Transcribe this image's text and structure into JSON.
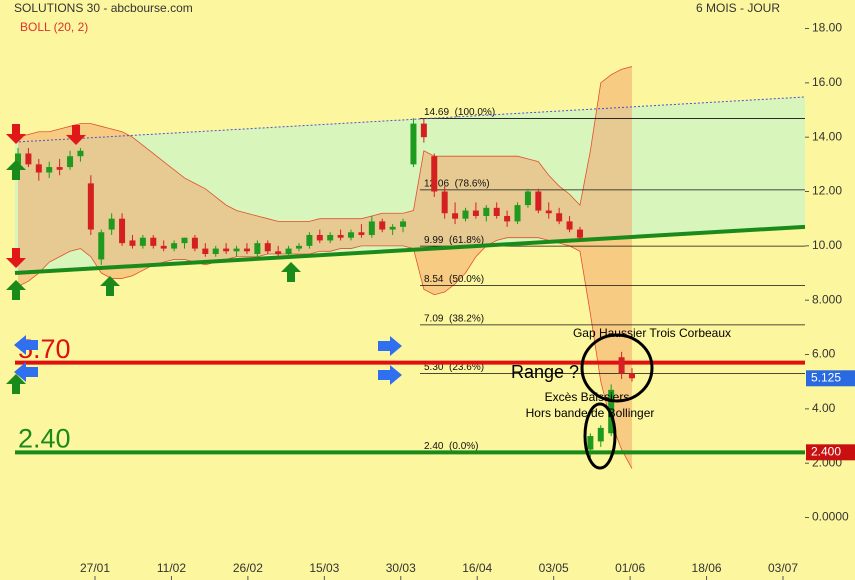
{
  "chart_data": {
    "type": "candlestick",
    "title": "SOLUTIONS 30 - abcbourse.com",
    "period": "6 MOIS - JOUR",
    "ylim": [
      -2.3,
      19.05
    ],
    "yticks": [
      {
        "value": 18,
        "label": "18.00"
      },
      {
        "value": 16,
        "label": "16.00"
      },
      {
        "value": 14,
        "label": "14.00"
      },
      {
        "value": 12,
        "label": "12.00"
      },
      {
        "value": 10,
        "label": "10.00"
      },
      {
        "value": 8,
        "label": "8.000"
      },
      {
        "value": 6,
        "label": "6.00"
      },
      {
        "value": 4,
        "label": "4.00"
      },
      {
        "value": 2,
        "label": "2.000"
      },
      {
        "value": 0,
        "label": "0.0000"
      }
    ],
    "date_labels": [
      "27/01",
      "11/02",
      "26/02",
      "15/03",
      "30/03",
      "16/04",
      "03/05",
      "01/06",
      "18/06",
      "03/07"
    ],
    "up_color": "#1f9a1f",
    "down_color": "#d42020",
    "candles": [
      [
        13.0,
        13.6,
        12.6,
        13.4
      ],
      [
        13.4,
        13.6,
        12.9,
        13.0
      ],
      [
        13.0,
        13.2,
        12.4,
        12.7
      ],
      [
        12.7,
        13.1,
        12.5,
        12.9
      ],
      [
        12.9,
        13.2,
        12.6,
        12.8
      ],
      [
        12.9,
        13.5,
        12.8,
        13.3
      ],
      [
        13.3,
        13.6,
        13.1,
        13.5
      ],
      [
        12.3,
        12.6,
        10.4,
        10.6
      ],
      [
        9.5,
        10.6,
        9.3,
        10.5
      ],
      [
        10.6,
        11.2,
        10.4,
        11.0
      ],
      [
        11.0,
        11.2,
        10.0,
        10.1
      ],
      [
        10.2,
        10.4,
        9.9,
        10.0
      ],
      [
        10.0,
        10.4,
        9.9,
        10.3
      ],
      [
        10.3,
        10.4,
        9.9,
        10.0
      ],
      [
        10.0,
        10.2,
        9.8,
        9.9
      ],
      [
        9.9,
        10.2,
        9.8,
        10.1
      ],
      [
        10.1,
        10.3,
        9.9,
        10.3
      ],
      [
        10.3,
        10.4,
        9.8,
        9.9
      ],
      [
        9.9,
        10.1,
        9.6,
        9.7
      ],
      [
        9.7,
        10.0,
        9.6,
        9.9
      ],
      [
        9.9,
        10.1,
        9.7,
        9.8
      ],
      [
        9.8,
        10.0,
        9.6,
        9.9
      ],
      [
        9.9,
        10.1,
        9.7,
        9.8
      ],
      [
        9.7,
        10.2,
        9.6,
        10.1
      ],
      [
        10.1,
        10.2,
        9.7,
        9.8
      ],
      [
        9.8,
        10.0,
        9.6,
        9.7
      ],
      [
        9.7,
        10.0,
        9.6,
        9.9
      ],
      [
        9.9,
        10.1,
        9.8,
        10.0
      ],
      [
        10.0,
        10.5,
        9.9,
        10.4
      ],
      [
        10.4,
        10.6,
        10.1,
        10.2
      ],
      [
        10.2,
        10.5,
        10.1,
        10.4
      ],
      [
        10.4,
        10.6,
        10.2,
        10.3
      ],
      [
        10.3,
        10.6,
        10.2,
        10.5
      ],
      [
        10.5,
        10.8,
        10.3,
        10.4
      ],
      [
        10.4,
        11.1,
        10.3,
        10.9
      ],
      [
        10.9,
        11.0,
        10.5,
        10.6
      ],
      [
        10.6,
        10.8,
        10.4,
        10.7
      ],
      [
        10.7,
        11.0,
        10.5,
        10.9
      ],
      [
        13.0,
        14.7,
        12.9,
        14.5
      ],
      [
        14.5,
        14.7,
        13.8,
        14.0
      ],
      [
        13.3,
        13.4,
        11.8,
        12.0
      ],
      [
        12.0,
        12.2,
        11.0,
        11.2
      ],
      [
        11.2,
        11.6,
        10.8,
        11.0
      ],
      [
        11.0,
        11.4,
        10.9,
        11.3
      ],
      [
        11.3,
        11.6,
        11.0,
        11.1
      ],
      [
        11.1,
        11.5,
        10.9,
        11.4
      ],
      [
        11.4,
        11.6,
        11.0,
        11.1
      ],
      [
        11.1,
        11.3,
        10.7,
        10.9
      ],
      [
        10.9,
        11.6,
        10.8,
        11.5
      ],
      [
        11.5,
        12.1,
        11.4,
        12.0
      ],
      [
        12.0,
        12.1,
        11.2,
        11.3
      ],
      [
        11.3,
        11.6,
        11.0,
        11.2
      ],
      [
        11.2,
        11.4,
        10.8,
        10.9
      ],
      [
        10.9,
        11.1,
        10.5,
        10.6
      ],
      [
        10.6,
        10.7,
        10.2,
        10.3
      ],
      [
        2.5,
        3.1,
        2.2,
        3.0
      ],
      [
        2.8,
        3.4,
        2.6,
        3.3
      ],
      [
        3.1,
        4.9,
        3.0,
        4.7
      ],
      [
        5.9,
        6.1,
        5.1,
        5.3
      ],
      [
        5.3,
        5.5,
        5.0,
        5.125
      ]
    ],
    "bollinger": {
      "name": "BOLL (20, 2)",
      "color": "#e05030",
      "upper": [
        14.0,
        14.1,
        14.2,
        14.2,
        14.3,
        14.4,
        14.5,
        14.5,
        14.4,
        14.3,
        14.2,
        14.0,
        13.7,
        13.4,
        13.1,
        12.8,
        12.5,
        12.3,
        12.1,
        11.8,
        11.5,
        11.3,
        11.2,
        11.1,
        11.0,
        10.9,
        10.9,
        10.9,
        10.9,
        11.0,
        11.0,
        11.0,
        11.0,
        11.0,
        11.1,
        11.2,
        11.2,
        11.2,
        11.3,
        13.5,
        13.3,
        13.3,
        13.3,
        13.3,
        13.3,
        13.3,
        13.3,
        13.3,
        13.3,
        13.2,
        13.1,
        12.6,
        12.2,
        11.9,
        11.5,
        13.5,
        16.0,
        16.3,
        16.5,
        16.6
      ],
      "lower": [
        8.5,
        8.7,
        9.0,
        9.4,
        9.6,
        9.8,
        9.9,
        9.6,
        9.0,
        8.8,
        8.8,
        8.9,
        9.1,
        9.3,
        9.4,
        9.5,
        9.5,
        9.4,
        9.3,
        9.4,
        9.5,
        9.6,
        9.6,
        9.6,
        9.7,
        9.7,
        9.7,
        9.7,
        9.7,
        9.8,
        9.8,
        9.9,
        9.9,
        10.0,
        10.0,
        10.0,
        10.0,
        10.0,
        9.9,
        8.4,
        8.2,
        8.3,
        8.6,
        9.0,
        9.6,
        10.0,
        10.2,
        10.3,
        10.3,
        10.3,
        10.3,
        10.2,
        10.1,
        10.0,
        9.8,
        7.5,
        5.0,
        3.5,
        2.5,
        1.8
      ]
    },
    "trendlines": [
      {
        "style": "dotted",
        "color": "#5050c8",
        "values": [
          13.82,
          15.48
        ]
      },
      {
        "style": "solid",
        "color": "#1a8a1a",
        "values": [
          9.0,
          10.7
        ]
      }
    ],
    "fib_levels": [
      {
        "value": 14.69,
        "label": "14.69  (100.0%)"
      },
      {
        "value": 12.06,
        "label": "12.06  (78.6%)"
      },
      {
        "value": 9.99,
        "label": "9.99  (61.8%)"
      },
      {
        "value": 8.54,
        "label": "8.54  (50.0%)"
      },
      {
        "value": 7.09,
        "label": "7.09  (38.2%)"
      },
      {
        "value": 5.3,
        "label": "5.30  (23.6%)"
      },
      {
        "value": 2.4,
        "label": "2.40  (0.0%)"
      }
    ],
    "levels": [
      {
        "value": 5.7,
        "label": "5.70",
        "color": "#e01010"
      },
      {
        "value": 2.4,
        "label": "2.40",
        "color": "#1a8a1a"
      }
    ],
    "price_tags": [
      {
        "value": 5.125,
        "color": "#2a6ae0"
      },
      {
        "value": 2.4,
        "label": "2.400",
        "color": "#c81010"
      }
    ],
    "annotations": [
      "Gap Haussier Trois Corbeaux",
      "Range ?",
      "Excès Baissiers",
      "Hors bande de Bollinger"
    ]
  }
}
